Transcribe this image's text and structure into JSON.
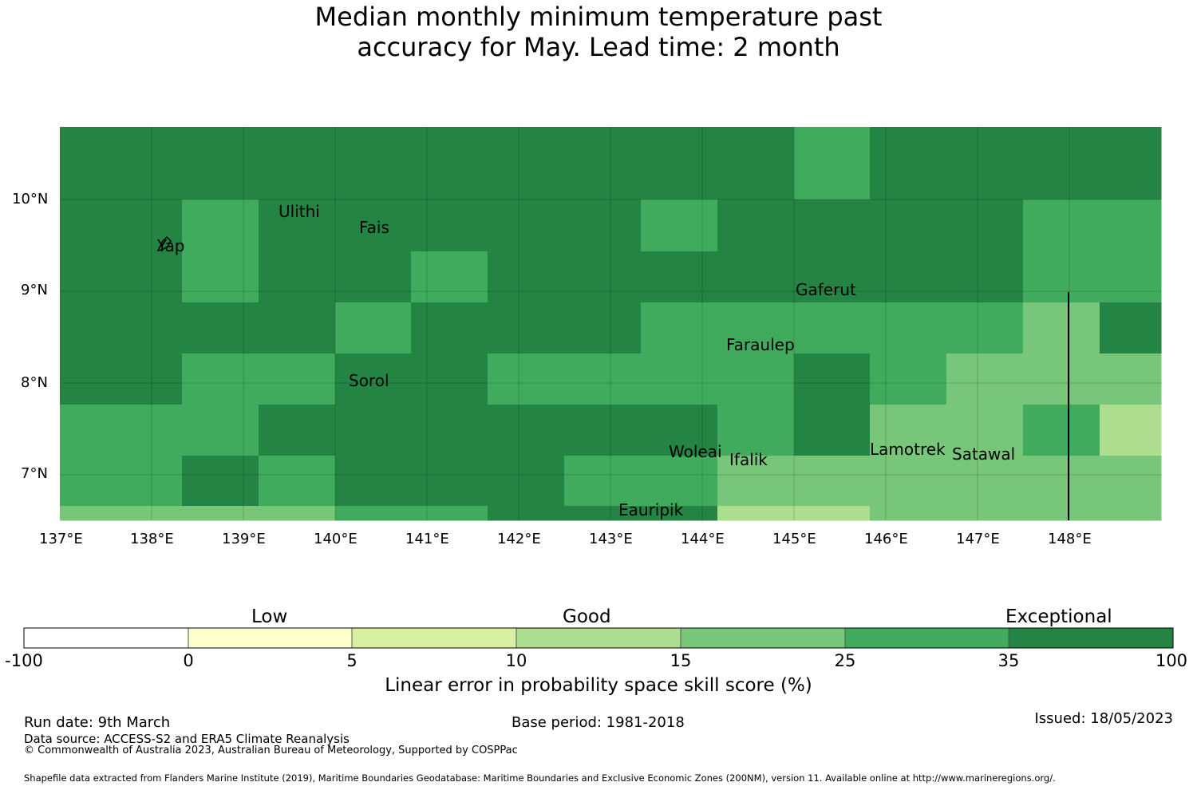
{
  "title_lines": [
    "Median monthly minimum temperature past",
    "accuracy for May. Lead time: 2 month"
  ],
  "map": {
    "lon_range": [
      137,
      149
    ],
    "lat_range": [
      6.5,
      10.8
    ],
    "lon_ticks": [
      137,
      138,
      139,
      140,
      141,
      142,
      143,
      144,
      145,
      146,
      147,
      148
    ],
    "lon_tick_labels": [
      "137°E",
      "138°E",
      "139°E",
      "140°E",
      "141°E",
      "142°E",
      "143°E",
      "144°E",
      "145°E",
      "146°E",
      "147°E",
      "148°E"
    ],
    "lat_ticks": [
      10,
      9,
      8,
      7
    ],
    "lat_tick_labels": [
      "10°N",
      "9°N",
      "8°N",
      "7°N"
    ],
    "grid": true,
    "cell_colors": [
      "#ffffff",
      "#ffffcc",
      "#d9f0a3",
      "#addd8e",
      "#78c679",
      "#41ab5d",
      "#238443"
    ],
    "places": [
      {
        "name": "Ulithi",
        "lon": 139.78,
        "lat": 10.0
      },
      {
        "name": "Fais",
        "lon": 140.5,
        "lat": 9.75
      },
      {
        "name": "Yap",
        "lon": 138.12,
        "lat": 9.52
      },
      {
        "name": "Gaferut",
        "lon": 145.37,
        "lat": 9.22
      },
      {
        "name": "Faraulep",
        "lon": 144.52,
        "lat": 8.6
      },
      {
        "name": "Sorol",
        "lon": 140.38,
        "lat": 8.13
      },
      {
        "name": "Woleai",
        "lon": 143.9,
        "lat": 7.36
      },
      {
        "name": "Ifalik",
        "lon": 144.45,
        "lat": 7.25
      },
      {
        "name": "Lamotrek",
        "lon": 146.38,
        "lat": 7.45
      },
      {
        "name": "Satawal",
        "lon": 147.03,
        "lat": 7.36
      },
      {
        "name": "Eauripik",
        "lon": 143.04,
        "lat": 6.69
      }
    ]
  },
  "colorbar": {
    "category_labels": [
      "Low",
      "Good",
      "Exceptional"
    ],
    "tick_labels": [
      "-100",
      "0",
      "5",
      "10",
      "15",
      "25",
      "35",
      "100"
    ],
    "colors": [
      "#ffffff",
      "#ffffcc",
      "#d9f0a3",
      "#addd8e",
      "#78c679",
      "#41ab5d",
      "#238443"
    ],
    "label": "Linear error in probability space skill score (%)"
  },
  "footer": {
    "run_date": "Run date: 9th March",
    "base_period": "Base period: 1981-2018",
    "issued": "Issued: 18/05/2023",
    "data_source": "Data source: ACCESS-S2 and ERA5 Climate Reanalysis",
    "copyright": "© Commonwealth of Australia 2023, Australian Bureau of Meteorology, Supported by COSPPac",
    "shapefile": "Shapefile data extracted from Flanders Marine Institute (2019), Maritime Boundaries Geodatabase: Maritime Boundaries and Exclusive Economic Zones (200NM), version 11. Available online at http://www.marineregions.org/."
  }
}
